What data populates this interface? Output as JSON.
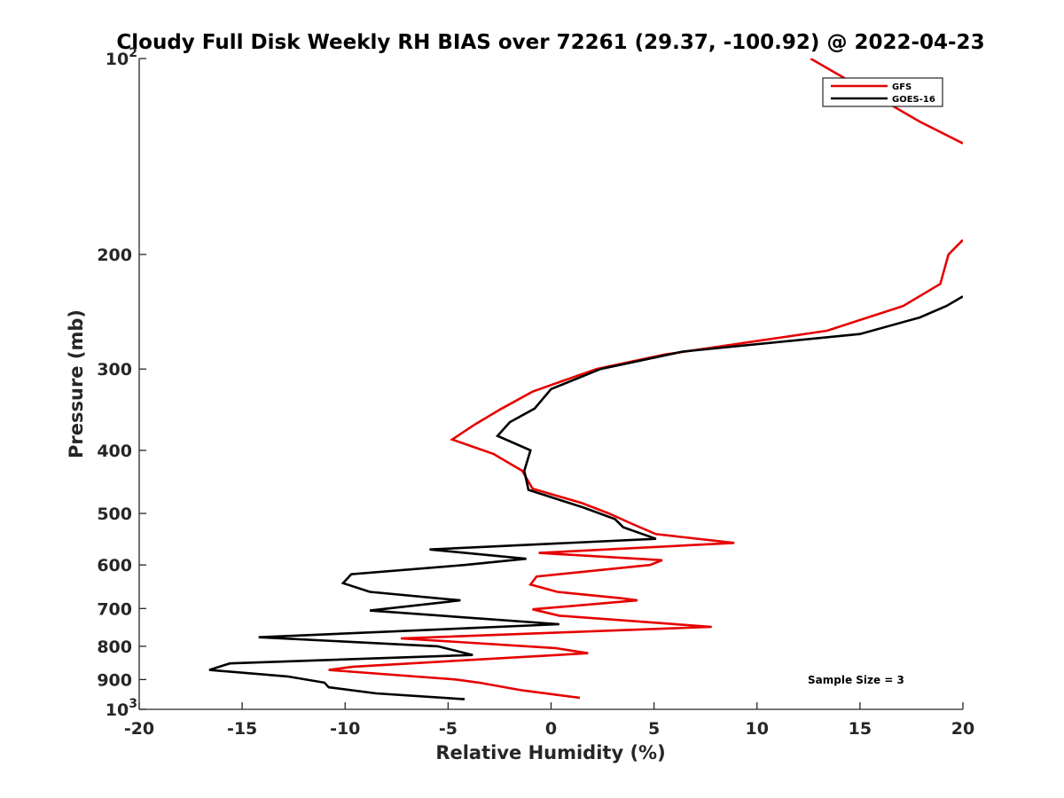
{
  "chart_data": {
    "type": "line",
    "title": "Cloudy Full Disk Weekly RH BIAS over 72261 (29.37, -100.92) @ 2022-04-23",
    "xlabel": "Relative Humidity (%)",
    "ylabel": "Pressure (mb)",
    "xlim": [
      -20,
      20
    ],
    "ylim": [
      100,
      1000
    ],
    "y_scale": "log",
    "y_reversed": true,
    "x_ticks": [
      "-20",
      "-15",
      "-10",
      "-5",
      "0",
      "5",
      "10",
      "15",
      "20"
    ],
    "y_ticks": [
      {
        "value": 100,
        "label": "10",
        "sup": "2"
      },
      {
        "value": 200,
        "label": "200"
      },
      {
        "value": 300,
        "label": "300"
      },
      {
        "value": 400,
        "label": "400"
      },
      {
        "value": 500,
        "label": "500"
      },
      {
        "value": 600,
        "label": "600"
      },
      {
        "value": 700,
        "label": "700"
      },
      {
        "value": 800,
        "label": "800"
      },
      {
        "value": 900,
        "label": "900"
      },
      {
        "value": 1000,
        "label": "10",
        "sup": "3"
      }
    ],
    "grid": false,
    "legend_position": "top-right",
    "annotation": "Sample Size = 3",
    "series": [
      {
        "name": "GFS",
        "color": "#e60000",
        "segments": [
          [
            {
              "x": 12.6,
              "p": 100
            },
            {
              "x": 17.9,
              "p": 125
            },
            {
              "x": 20.0,
              "p": 135
            }
          ],
          [
            {
              "x": 20.0,
              "p": 190
            },
            {
              "x": 19.3,
              "p": 200
            },
            {
              "x": 18.9,
              "p": 222
            },
            {
              "x": 17.1,
              "p": 240
            },
            {
              "x": 13.4,
              "p": 262
            },
            {
              "x": 5.5,
              "p": 285
            },
            {
              "x": 2.2,
              "p": 300
            },
            {
              "x": -0.9,
              "p": 325
            },
            {
              "x": -2.4,
              "p": 345
            },
            {
              "x": -3.7,
              "p": 365
            },
            {
              "x": -4.8,
              "p": 385
            },
            {
              "x": -2.8,
              "p": 405
            },
            {
              "x": -1.4,
              "p": 430
            },
            {
              "x": -0.9,
              "p": 458
            },
            {
              "x": 1.5,
              "p": 482
            },
            {
              "x": 2.8,
              "p": 500
            },
            {
              "x": 4.0,
              "p": 520
            },
            {
              "x": 5.1,
              "p": 538
            },
            {
              "x": 8.9,
              "p": 555
            },
            {
              "x": -0.6,
              "p": 575
            },
            {
              "x": 5.4,
              "p": 590
            },
            {
              "x": 4.8,
              "p": 600
            },
            {
              "x": -0.7,
              "p": 625
            },
            {
              "x": -1.0,
              "p": 643
            },
            {
              "x": 0.3,
              "p": 660
            },
            {
              "x": 3.4,
              "p": 675
            },
            {
              "x": 4.2,
              "p": 680
            },
            {
              "x": -0.9,
              "p": 702
            },
            {
              "x": 0.4,
              "p": 718
            },
            {
              "x": 7.8,
              "p": 747
            },
            {
              "x": -7.3,
              "p": 778
            },
            {
              "x": 0.2,
              "p": 805
            },
            {
              "x": 1.8,
              "p": 820
            },
            {
              "x": -9.6,
              "p": 860
            },
            {
              "x": -10.8,
              "p": 870
            },
            {
              "x": -4.6,
              "p": 900
            },
            {
              "x": -3.5,
              "p": 910
            },
            {
              "x": -1.4,
              "p": 935
            },
            {
              "x": 1.4,
              "p": 960
            }
          ]
        ]
      },
      {
        "name": "GOES-16",
        "color": "#000000",
        "segments": [
          [
            {
              "x": 20.0,
              "p": 232
            },
            {
              "x": 19.2,
              "p": 240
            },
            {
              "x": 17.9,
              "p": 250
            },
            {
              "x": 15.0,
              "p": 265
            },
            {
              "x": 6.4,
              "p": 282
            },
            {
              "x": 2.4,
              "p": 300
            },
            {
              "x": 0.0,
              "p": 322
            },
            {
              "x": -0.8,
              "p": 345
            },
            {
              "x": -2.0,
              "p": 362
            },
            {
              "x": -2.6,
              "p": 380
            },
            {
              "x": -1.0,
              "p": 400
            },
            {
              "x": -1.3,
              "p": 430
            },
            {
              "x": -1.1,
              "p": 460
            },
            {
              "x": 1.6,
              "p": 490
            },
            {
              "x": 3.1,
              "p": 510
            },
            {
              "x": 3.5,
              "p": 525
            },
            {
              "x": 5.1,
              "p": 547
            },
            {
              "x": -5.9,
              "p": 568
            },
            {
              "x": -1.2,
              "p": 587
            },
            {
              "x": -4.2,
              "p": 600
            },
            {
              "x": -9.7,
              "p": 620
            },
            {
              "x": -10.1,
              "p": 640
            },
            {
              "x": -8.8,
              "p": 660
            },
            {
              "x": -4.4,
              "p": 680
            },
            {
              "x": -8.8,
              "p": 705
            },
            {
              "x": 0.4,
              "p": 740
            },
            {
              "x": -14.2,
              "p": 775
            },
            {
              "x": -5.5,
              "p": 800
            },
            {
              "x": -3.8,
              "p": 825
            },
            {
              "x": -15.6,
              "p": 850
            },
            {
              "x": -16.6,
              "p": 870
            },
            {
              "x": -12.8,
              "p": 890
            },
            {
              "x": -11.0,
              "p": 910
            },
            {
              "x": -10.8,
              "p": 925
            },
            {
              "x": -8.5,
              "p": 945
            },
            {
              "x": -4.2,
              "p": 965
            }
          ]
        ]
      }
    ]
  }
}
